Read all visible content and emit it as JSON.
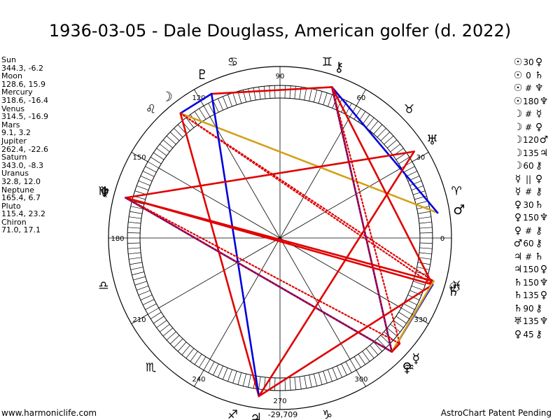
{
  "title": "1936-03-05 - Dale Douglass, American golfer (d. 2022)",
  "planets": [
    {
      "name": "Sun",
      "glyph": "☉",
      "coords": "344.3, -6.2",
      "lon": 344.3
    },
    {
      "name": "Moon",
      "glyph": "☽",
      "coords": "128.6, 15.9",
      "lon": 128.6
    },
    {
      "name": "Mercury",
      "glyph": "☿",
      "coords": "318.6, -16.4",
      "lon": 318.6
    },
    {
      "name": "Venus",
      "glyph": "♀",
      "coords": "314.5, -16.9",
      "lon": 314.5
    },
    {
      "name": "Mars",
      "glyph": "♂",
      "coords": "9.1, 3.2",
      "lon": 9.1
    },
    {
      "name": "Jupiter",
      "glyph": "♃",
      "coords": "262.4, -22.6",
      "lon": 262.4
    },
    {
      "name": "Saturn",
      "glyph": "♄",
      "coords": "343.0, -8.3",
      "lon": 343.0
    },
    {
      "name": "Uranus",
      "glyph": "♅",
      "coords": "32.8, 12.0",
      "lon": 32.8
    },
    {
      "name": "Neptune",
      "glyph": "♆",
      "coords": "165.4, 6.7",
      "lon": 165.4
    },
    {
      "name": "Pluto",
      "glyph": "♇",
      "coords": "115.4, 23.2",
      "lon": 115.4
    },
    {
      "name": "Chiron",
      "glyph": "⚷",
      "coords": "71.0, 17.1",
      "lon": 71.0
    }
  ],
  "aspects": [
    {
      "p1": "☉",
      "asp": "30",
      "p2": "♀"
    },
    {
      "p1": "☉",
      "asp": "0",
      "p2": "♄"
    },
    {
      "p1": "☉",
      "asp": "#",
      "p2": "♆"
    },
    {
      "p1": "☉",
      "asp": "180",
      "p2": "♆"
    },
    {
      "p1": "☽",
      "asp": "#",
      "p2": "☿"
    },
    {
      "p1": "☽",
      "asp": "#",
      "p2": "♀"
    },
    {
      "p1": "☽",
      "asp": "120",
      "p2": "♂"
    },
    {
      "p1": "☽",
      "asp": "135",
      "p2": "♃"
    },
    {
      "p1": "☽",
      "asp": "60",
      "p2": "⚷"
    },
    {
      "p1": "☿",
      "asp": "||",
      "p2": "♀"
    },
    {
      "p1": "☿",
      "asp": "#",
      "p2": "⚷"
    },
    {
      "p1": "♀",
      "asp": "30",
      "p2": "♄"
    },
    {
      "p1": "♀",
      "asp": "150",
      "p2": "♆"
    },
    {
      "p1": "♀",
      "asp": "#",
      "p2": "⚷"
    },
    {
      "p1": "♂",
      "asp": "60",
      "p2": "⚷"
    },
    {
      "p1": "♃",
      "asp": "#",
      "p2": "♄"
    },
    {
      "p1": "♃",
      "asp": "150",
      "p2": "♀"
    },
    {
      "p1": "♄",
      "asp": "150",
      "p2": "♆"
    },
    {
      "p1": "♄",
      "asp": "135",
      "p2": "♀"
    },
    {
      "p1": "♄",
      "asp": "90",
      "p2": "⚷"
    },
    {
      "p1": "♅",
      "asp": "135",
      "p2": "♆"
    },
    {
      "p1": "♀",
      "asp": "45",
      "p2": "⚷"
    }
  ],
  "chart_data": {
    "type": "radial-aspect-wheel",
    "title": "1936-03-05 - Dale Douglass, American golfer (d. 2022)",
    "degree_labels": [
      "0",
      "30",
      "60",
      "90",
      "120",
      "150",
      "180",
      "210",
      "240",
      "270",
      "300",
      "330"
    ],
    "bottom_label": "-29,709",
    "zodiac_signs": [
      "♈",
      "♉",
      "♊",
      "♋",
      "♌",
      "♍",
      "♎",
      "♏",
      "♐",
      "♑",
      "♒",
      "♓"
    ],
    "planet_longitudes": {
      "Sun": 344.3,
      "Moon": 128.6,
      "Mercury": 318.6,
      "Venus": 314.5,
      "Mars": 9.1,
      "Jupiter": 262.4,
      "Saturn": 343.0,
      "Uranus": 32.8,
      "Neptune": 165.4,
      "Pluto": 115.4,
      "Chiron": 71.0
    },
    "aspect_lines": [
      {
        "from": "Pluto",
        "to": "Chiron",
        "color": "#e00000",
        "style": "solid"
      },
      {
        "from": "Pluto",
        "to": "Moon",
        "color": "#0000e0",
        "style": "solid"
      },
      {
        "from": "Moon",
        "to": "Mars",
        "color": "#d4a017",
        "style": "solid"
      },
      {
        "from": "Moon",
        "to": "Jupiter",
        "color": "#e00000",
        "style": "solid"
      },
      {
        "from": "Moon",
        "to": "Sun",
        "color": "#e00000",
        "style": "dotted"
      },
      {
        "from": "Moon",
        "to": "Saturn",
        "color": "#e00000",
        "style": "dotted"
      },
      {
        "from": "Pluto",
        "to": "Jupiter",
        "color": "#0000e0",
        "style": "solid"
      },
      {
        "from": "Chiron",
        "to": "Mars",
        "color": "#0000e0",
        "style": "solid"
      },
      {
        "from": "Chiron",
        "to": "Venus",
        "color": "#0000e0",
        "style": "solid"
      },
      {
        "from": "Chiron",
        "to": "Saturn",
        "color": "#e00000",
        "style": "solid"
      },
      {
        "from": "Chiron",
        "to": "Mercury",
        "color": "#e00000",
        "style": "dotted"
      },
      {
        "from": "Chiron",
        "to": "Venus",
        "color": "#e00000",
        "style": "dotted"
      },
      {
        "from": "Neptune",
        "to": "Uranus",
        "color": "#e00000",
        "style": "solid"
      },
      {
        "from": "Neptune",
        "to": "Sun",
        "color": "#e00000",
        "style": "solid"
      },
      {
        "from": "Neptune",
        "to": "Saturn",
        "color": "#e00000",
        "style": "solid"
      },
      {
        "from": "Neptune",
        "to": "Venus",
        "color": "#0000e0",
        "style": "solid"
      },
      {
        "from": "Jupiter",
        "to": "Saturn",
        "color": "#e00000",
        "style": "solid"
      },
      {
        "from": "Saturn",
        "to": "Venus",
        "color": "#0000e0",
        "style": "solid"
      },
      {
        "from": "Sun",
        "to": "Venus",
        "color": "#d4a017",
        "style": "solid"
      },
      {
        "from": "Mercury",
        "to": "Venus",
        "color": "#e00000",
        "style": "solid"
      },
      {
        "from": "Neptune",
        "to": "Mercury",
        "color": "#e00000",
        "style": "dotted"
      },
      {
        "from": "Neptune",
        "to": "Venus",
        "color": "#e00000",
        "style": "dotted"
      },
      {
        "from": "Uranus",
        "to": "Jupiter",
        "color": "#e00000",
        "style": "solid"
      }
    ],
    "colors": {
      "harmonious": "#0000e0",
      "tense": "#e00000",
      "minor": "#d4a017"
    }
  },
  "footer": {
    "left": "www.harmoniclife.com",
    "right": "AstroChart Patent Pending"
  }
}
